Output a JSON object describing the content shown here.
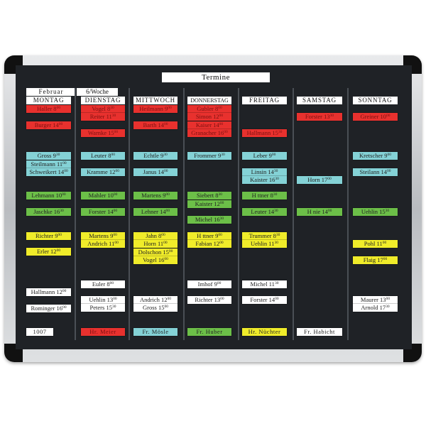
{
  "board": {
    "title": "Termine",
    "month": "Februar",
    "week": "6/Woche"
  },
  "colors": {
    "red": "#e8312e",
    "blue": "#84d2d6",
    "green": "#6cbf48",
    "yellow": "#f0ec2a",
    "white": "#ffffff",
    "board": "#1f2226"
  },
  "columns": [
    {
      "day": "MONTAG",
      "cards": [
        {
          "name": "Haller",
          "hour": "8",
          "min": "00",
          "color": "red"
        },
        {
          "name": "Burger",
          "hour": "14",
          "min": "00",
          "color": "red"
        },
        {
          "name": "Gross",
          "hour": "9",
          "min": "30",
          "color": "blue"
        },
        {
          "name": "Steilmann",
          "hour": "11",
          "min": "00",
          "color": "blue"
        },
        {
          "name": "Schweikert",
          "hour": "14",
          "min": "00",
          "color": "blue"
        },
        {
          "name": "Lehmann",
          "hour": "10",
          "min": "00",
          "color": "green"
        },
        {
          "name": "Jaschke",
          "hour": "16",
          "min": "30",
          "color": "green"
        },
        {
          "name": "Richter",
          "hour": "9",
          "min": "00",
          "color": "yellow"
        },
        {
          "name": "Erler",
          "hour": "12",
          "min": "00",
          "color": "yellow"
        },
        {
          "name": "Hallmann",
          "hour": "12",
          "min": "00",
          "color": "white"
        },
        {
          "name": "Rominger",
          "hour": "16",
          "min": "00",
          "color": "white"
        }
      ],
      "footer": {
        "name": "1007",
        "color": "white"
      }
    },
    {
      "day": "DIENSTAG",
      "cards": [
        {
          "name": "Vogel",
          "hour": "8",
          "min": "30",
          "color": "red"
        },
        {
          "name": "Reiter",
          "hour": "11",
          "min": "30",
          "color": "red"
        },
        {
          "name": "Warnke",
          "hour": "15",
          "min": "00",
          "color": "red"
        },
        {
          "name": "Leuter",
          "hour": "8",
          "min": "00",
          "color": "blue"
        },
        {
          "name": "Kramme",
          "hour": "12",
          "min": "00",
          "color": "blue"
        },
        {
          "name": "Mahler",
          "hour": "10",
          "min": "00",
          "color": "green"
        },
        {
          "name": "Forster",
          "hour": "14",
          "min": "00",
          "color": "green"
        },
        {
          "name": "Martens",
          "hour": "9",
          "min": "00",
          "color": "yellow"
        },
        {
          "name": "Andrich",
          "hour": "11",
          "min": "00",
          "color": "yellow"
        },
        {
          "name": "Euler",
          "hour": "8",
          "min": "00",
          "color": "white"
        },
        {
          "name": "Uehlin",
          "hour": "13",
          "min": "00",
          "color": "white"
        },
        {
          "name": "Peters",
          "hour": "15",
          "min": "30",
          "color": "white"
        }
      ],
      "footer": {
        "name": "Hr. Meier",
        "color": "red"
      }
    },
    {
      "day": "MITTWOCH",
      "cards": [
        {
          "name": "Heilmann",
          "hour": "9",
          "min": "00",
          "color": "red"
        },
        {
          "name": "Barth",
          "hour": "14",
          "min": "00",
          "color": "red"
        },
        {
          "name": "Echtle",
          "hour": "9",
          "min": "30",
          "color": "blue"
        },
        {
          "name": "Janus",
          "hour": "14",
          "min": "00",
          "color": "blue"
        },
        {
          "name": "Martens",
          "hour": "9",
          "min": "00",
          "color": "green"
        },
        {
          "name": "Lehner",
          "hour": "14",
          "min": "00",
          "color": "green"
        },
        {
          "name": "Jahn",
          "hour": "8",
          "min": "00",
          "color": "yellow"
        },
        {
          "name": "Horn",
          "hour": "11",
          "min": "00",
          "color": "yellow"
        },
        {
          "name": "Dolschon",
          "hour": "15",
          "min": "00",
          "color": "yellow"
        },
        {
          "name": "Vogel",
          "hour": "16",
          "min": "00",
          "color": "yellow"
        },
        {
          "name": "Andrich",
          "hour": "12",
          "min": "00",
          "color": "white"
        },
        {
          "name": "Gross",
          "hour": "15",
          "min": "00",
          "color": "white"
        }
      ],
      "footer": {
        "name": "Fr. Mösle",
        "color": "blue"
      }
    },
    {
      "day": "DONNERSTAG",
      "cards": [
        {
          "name": "Gubler",
          "hour": "8",
          "min": "00",
          "color": "red"
        },
        {
          "name": "Simon",
          "hour": "12",
          "min": "00",
          "color": "red"
        },
        {
          "name": "Kaiser",
          "hour": "14",
          "min": "00",
          "color": "red"
        },
        {
          "name": "Granacher",
          "hour": "16",
          "min": "00",
          "color": "red"
        },
        {
          "name": "Frommer",
          "hour": "9",
          "min": "30",
          "color": "blue"
        },
        {
          "name": "Siebert",
          "hour": "8",
          "min": "30",
          "color": "green"
        },
        {
          "name": "Kaister",
          "hour": "12",
          "min": "00",
          "color": "green"
        },
        {
          "name": "Michel",
          "hour": "16",
          "min": "30",
          "color": "green"
        },
        {
          "name": "H ttner",
          "hour": "9",
          "min": "00",
          "color": "yellow"
        },
        {
          "name": "Fabian",
          "hour": "12",
          "min": "00",
          "color": "yellow"
        },
        {
          "name": "Imhof",
          "hour": "9",
          "min": "00",
          "color": "white"
        },
        {
          "name": "Richter",
          "hour": "13",
          "min": "00",
          "color": "white"
        }
      ],
      "footer": {
        "name": "Fr. Huber",
        "color": "green"
      }
    },
    {
      "day": "FREITAG",
      "cards": [
        {
          "name": "Hallmann",
          "hour": "15",
          "min": "30",
          "color": "red"
        },
        {
          "name": "Leber",
          "hour": "9",
          "min": "00",
          "color": "blue"
        },
        {
          "name": "Linsin",
          "hour": "14",
          "min": "30",
          "color": "blue"
        },
        {
          "name": "Kaister",
          "hour": "16",
          "min": "30",
          "color": "blue"
        },
        {
          "name": "H ttner",
          "hour": "8",
          "min": "30",
          "color": "green"
        },
        {
          "name": "Leuter",
          "hour": "14",
          "min": "30",
          "color": "green"
        },
        {
          "name": "Trummer",
          "hour": "8",
          "min": "30",
          "color": "yellow"
        },
        {
          "name": "Uehlin",
          "hour": "11",
          "min": "30",
          "color": "yellow"
        },
        {
          "name": "Michel",
          "hour": "11",
          "min": "30",
          "color": "white"
        },
        {
          "name": "Forster",
          "hour": "14",
          "min": "00",
          "color": "white"
        }
      ],
      "footer": {
        "name": "Hr. Nüchter",
        "color": "yellow"
      }
    },
    {
      "day": "SAMSTAG",
      "cards": [
        {
          "name": "Forster",
          "hour": "13",
          "min": "30",
          "color": "red"
        },
        {
          "name": "Horn",
          "hour": "17",
          "min": "00",
          "color": "blue"
        },
        {
          "name": "H nie",
          "hour": "14",
          "min": "00",
          "color": "green"
        }
      ],
      "footer": {
        "name": "Fr. Habicht",
        "color": "white"
      }
    },
    {
      "day": "SONNTAG",
      "cards": [
        {
          "name": "Greiner",
          "hour": "10",
          "min": "00",
          "color": "red"
        },
        {
          "name": "Kretscher",
          "hour": "9",
          "min": "00",
          "color": "blue"
        },
        {
          "name": "Steilann",
          "hour": "14",
          "min": "00",
          "color": "blue"
        },
        {
          "name": "Uehlin",
          "hour": "15",
          "min": "30",
          "color": "green"
        },
        {
          "name": "Pohl",
          "hour": "11",
          "min": "00",
          "color": "yellow"
        },
        {
          "name": "Flaig",
          "hour": "17",
          "min": "00",
          "color": "yellow"
        },
        {
          "name": "Maurer",
          "hour": "13",
          "min": "00",
          "color": "white"
        },
        {
          "name": "Arnold",
          "hour": "17",
          "min": "30",
          "color": "white"
        }
      ],
      "footer": null
    }
  ]
}
